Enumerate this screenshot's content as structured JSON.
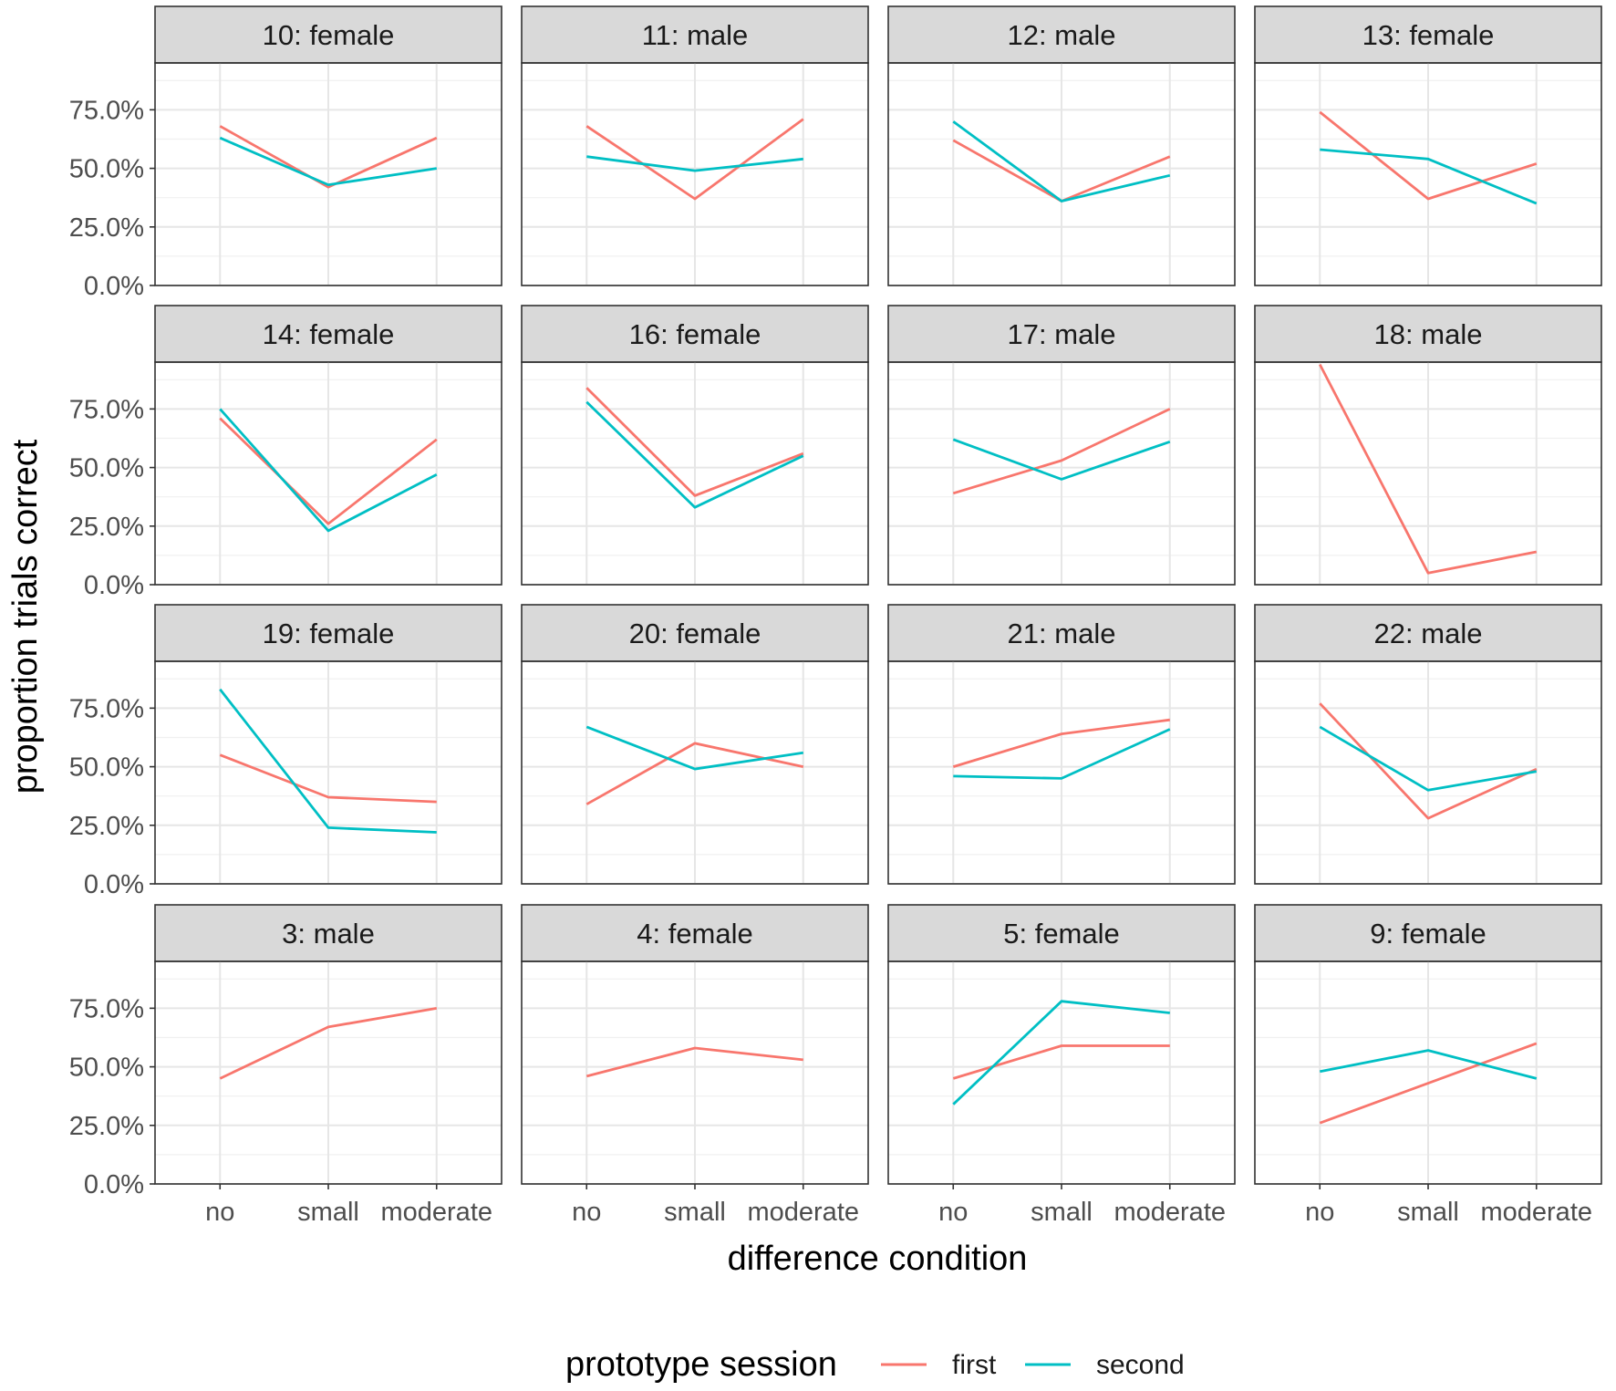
{
  "chart_data": {
    "type": "line",
    "facet_layout": {
      "rows": 4,
      "cols": 4
    },
    "x_categories": [
      "no",
      "small",
      "moderate"
    ],
    "xlabel": "difference condition",
    "ylabel": "proportion trials correct",
    "y_ticks": [
      "0.0%",
      "25.0%",
      "50.0%",
      "75.0%"
    ],
    "y_tick_values": [
      0,
      0.25,
      0.5,
      0.75
    ],
    "ylim": [
      0,
      0.95
    ],
    "grid": true,
    "legend": {
      "title": "prototype session",
      "position": "bottom",
      "entries": [
        {
          "name": "first",
          "color": "#F8766D"
        },
        {
          "name": "second",
          "color": "#00BFC4"
        }
      ]
    },
    "panels": [
      {
        "label": "10: female",
        "series": [
          {
            "name": "first",
            "values": [
              0.68,
              0.42,
              0.63
            ]
          },
          {
            "name": "second",
            "values": [
              0.63,
              0.43,
              0.5
            ]
          }
        ]
      },
      {
        "label": "11: male",
        "series": [
          {
            "name": "first",
            "values": [
              0.68,
              0.37,
              0.71
            ]
          },
          {
            "name": "second",
            "values": [
              0.55,
              0.49,
              0.54
            ]
          }
        ]
      },
      {
        "label": "12: male",
        "series": [
          {
            "name": "first",
            "values": [
              0.62,
              0.36,
              0.55
            ]
          },
          {
            "name": "second",
            "values": [
              0.7,
              0.36,
              0.47
            ]
          }
        ]
      },
      {
        "label": "13: female",
        "series": [
          {
            "name": "first",
            "values": [
              0.74,
              0.37,
              0.52
            ]
          },
          {
            "name": "second",
            "values": [
              0.58,
              0.54,
              0.35
            ]
          }
        ]
      },
      {
        "label": "14: female",
        "series": [
          {
            "name": "first",
            "values": [
              0.71,
              0.26,
              0.62
            ]
          },
          {
            "name": "second",
            "values": [
              0.75,
              0.23,
              0.47
            ]
          }
        ]
      },
      {
        "label": "16: female",
        "series": [
          {
            "name": "first",
            "values": [
              0.84,
              0.38,
              0.56
            ]
          },
          {
            "name": "second",
            "values": [
              0.78,
              0.33,
              0.55
            ]
          }
        ]
      },
      {
        "label": "17: male",
        "series": [
          {
            "name": "first",
            "values": [
              0.39,
              0.53,
              0.75
            ]
          },
          {
            "name": "second",
            "values": [
              0.62,
              0.45,
              0.61
            ]
          }
        ]
      },
      {
        "label": "18: male",
        "series": [
          {
            "name": "first",
            "values": [
              0.94,
              0.05,
              0.14
            ]
          }
        ]
      },
      {
        "label": "19: female",
        "series": [
          {
            "name": "first",
            "values": [
              0.55,
              0.37,
              0.35
            ]
          },
          {
            "name": "second",
            "values": [
              0.83,
              0.24,
              0.22
            ]
          }
        ]
      },
      {
        "label": "20: female",
        "series": [
          {
            "name": "first",
            "values": [
              0.34,
              0.6,
              0.5
            ]
          },
          {
            "name": "second",
            "values": [
              0.67,
              0.49,
              0.56
            ]
          }
        ]
      },
      {
        "label": "21: male",
        "series": [
          {
            "name": "first",
            "values": [
              0.5,
              0.64,
              0.7
            ]
          },
          {
            "name": "second",
            "values": [
              0.46,
              0.45,
              0.66
            ]
          }
        ]
      },
      {
        "label": "22: male",
        "series": [
          {
            "name": "first",
            "values": [
              0.77,
              0.28,
              0.49
            ]
          },
          {
            "name": "second",
            "values": [
              0.67,
              0.4,
              0.48
            ]
          }
        ]
      },
      {
        "label": "3: male",
        "series": [
          {
            "name": "first",
            "values": [
              0.45,
              0.67,
              0.75
            ]
          }
        ]
      },
      {
        "label": "4: female",
        "series": [
          {
            "name": "first",
            "values": [
              0.46,
              0.58,
              0.53
            ]
          }
        ]
      },
      {
        "label": "5: female",
        "series": [
          {
            "name": "first",
            "values": [
              0.45,
              0.59,
              0.59
            ]
          },
          {
            "name": "second",
            "values": [
              0.34,
              0.78,
              0.73
            ]
          }
        ]
      },
      {
        "label": "9: female",
        "series": [
          {
            "name": "first",
            "values": [
              0.26,
              0.43,
              0.6
            ]
          },
          {
            "name": "second",
            "values": [
              0.48,
              0.57,
              0.45
            ]
          }
        ]
      }
    ]
  }
}
